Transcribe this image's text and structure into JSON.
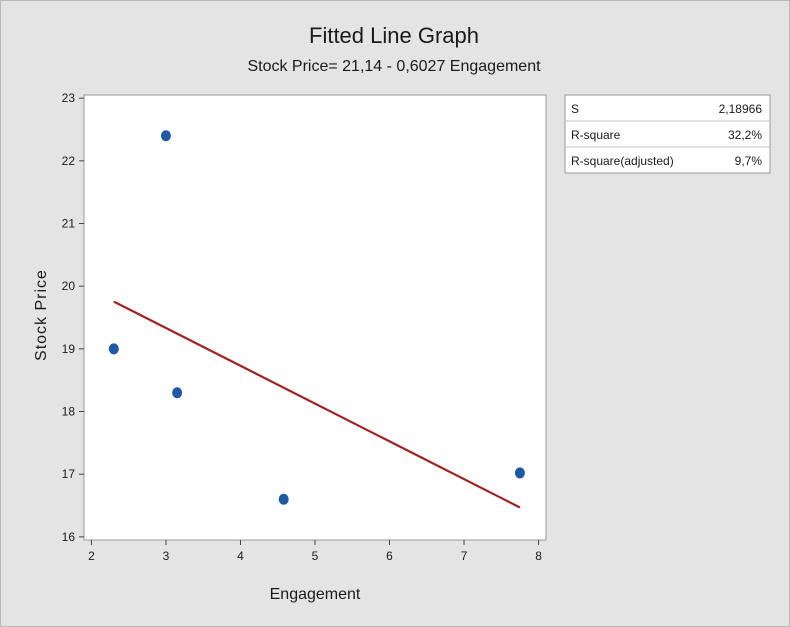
{
  "chart_data": {
    "type": "scatter",
    "title": "Fitted Line Graph",
    "subtitle": "Stock Price= 21,14 - 0,6027 Engagement",
    "xlabel": "Engagement",
    "ylabel": "Stock Price",
    "xlim": [
      1.9,
      8.1
    ],
    "ylim": [
      15.95,
      23.05
    ],
    "x_ticks": [
      {
        "value": 2,
        "label": "2"
      },
      {
        "value": 3,
        "label": "3"
      },
      {
        "value": 4,
        "label": "4"
      },
      {
        "value": 5,
        "label": "5"
      },
      {
        "value": 6,
        "label": "6"
      },
      {
        "value": 7,
        "label": "7"
      },
      {
        "value": 8,
        "label": "8"
      }
    ],
    "y_ticks": [
      {
        "value": 16,
        "label": "16"
      },
      {
        "value": 17,
        "label": "17"
      },
      {
        "value": 18,
        "label": "18"
      },
      {
        "value": 19,
        "label": "19"
      },
      {
        "value": 20,
        "label": "20"
      },
      {
        "value": 21,
        "label": "21"
      },
      {
        "value": 22,
        "label": "22"
      },
      {
        "value": 23,
        "label": "23"
      }
    ],
    "points": [
      {
        "x": 2.3,
        "y": 19.0
      },
      {
        "x": 3.0,
        "y": 22.4
      },
      {
        "x": 3.15,
        "y": 18.3
      },
      {
        "x": 4.58,
        "y": 16.6
      },
      {
        "x": 7.75,
        "y": 17.02
      }
    ],
    "fit_line": {
      "intercept": 21.14,
      "slope": -0.6027,
      "x_start": 2.3,
      "x_end": 7.75
    },
    "grid": false,
    "legend_placement": "right",
    "colors": {
      "point": "#1f5aa6",
      "fit_line": "#a32121",
      "plot_background": "#ffffff",
      "figure_background": "#e4e4e4"
    },
    "stats_table": [
      {
        "label": "S",
        "value": "2,18966"
      },
      {
        "label": "R-square",
        "value": "32,2%"
      },
      {
        "label": "R-square(adjusted)",
        "value": "9,7%"
      }
    ]
  }
}
